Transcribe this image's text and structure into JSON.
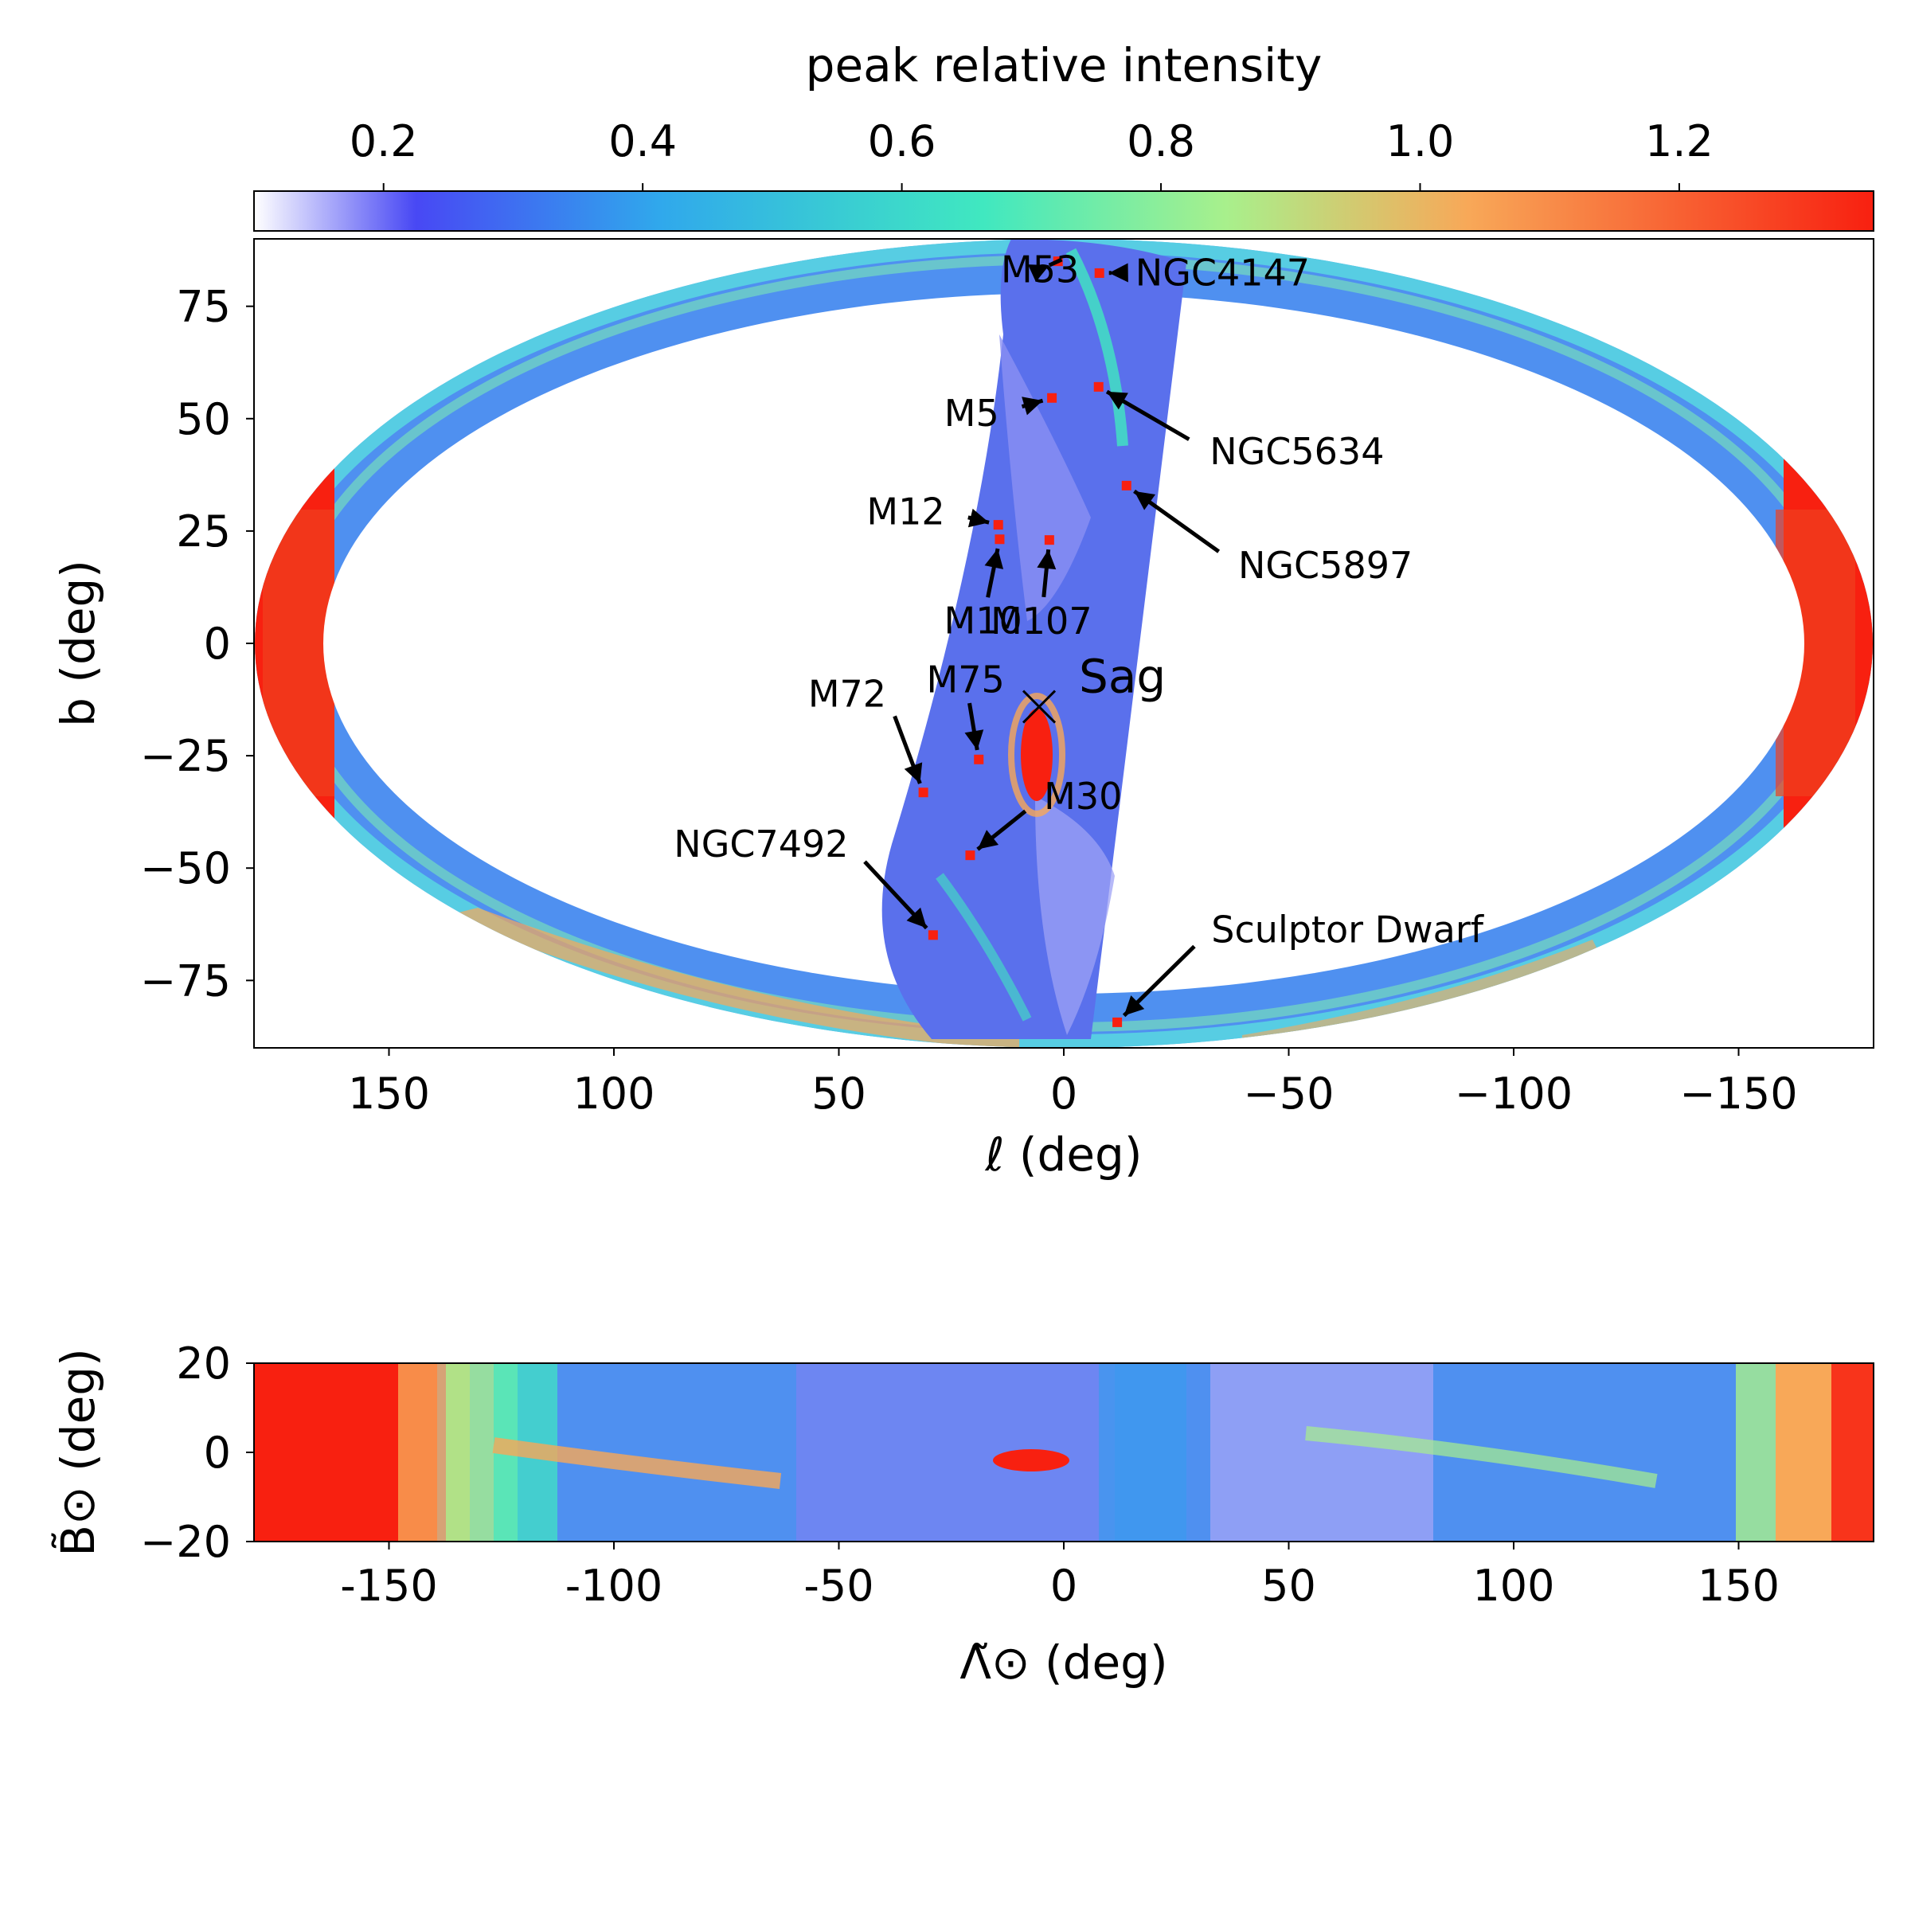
{
  "colorbar": {
    "label": "peak relative intensity",
    "range": [
      0.1,
      1.35
    ],
    "ticks": [
      0.2,
      0.4,
      0.6,
      0.8,
      1.0,
      1.2
    ],
    "tick_labels": [
      "0.2",
      "0.4",
      "0.6",
      "0.8",
      "1.0",
      "1.2"
    ],
    "stops": [
      "#ffffff",
      "#4848f4",
      "#30a8ec",
      "#40e8c0",
      "#a8f08c",
      "#f8a858",
      "#f82010"
    ]
  },
  "chart_data": [
    {
      "type": "heatmap",
      "projection": "aitoff",
      "xlabel": "ℓ (deg)",
      "ylabel": "b (deg)",
      "xlim": [
        180,
        -180
      ],
      "ylim": [
        -90,
        90
      ],
      "xticks": [
        150,
        100,
        50,
        0,
        -50,
        -100,
        -150
      ],
      "xtick_labels": [
        "150",
        "100",
        "50",
        "0",
        "−50",
        "−100",
        "−150"
      ],
      "yticks": [
        75,
        50,
        25,
        0,
        -25,
        -50,
        -75
      ],
      "ytick_labels": [
        "75",
        "50",
        "25",
        "0",
        "−25",
        "−50",
        "−75"
      ],
      "annotations": [
        {
          "label": "M53",
          "l": 10,
          "b": 85,
          "text_l": 30,
          "text_b": 83
        },
        {
          "label": "NGC4147",
          "l": -40,
          "b": 82,
          "text_l": -75,
          "text_b": 81
        },
        {
          "label": "M5",
          "l": 3.9,
          "b": 54.6,
          "text_l": 20,
          "text_b": 51
        },
        {
          "label": "NGC5634",
          "l": -12,
          "b": 57,
          "text_l": -40,
          "text_b": 42
        },
        {
          "label": "M12",
          "l": 15.7,
          "b": 26.3,
          "text_l": 29,
          "text_b": 29
        },
        {
          "label": "NGC5897",
          "l": -16,
          "b": 35,
          "text_l": -40,
          "text_b": 17
        },
        {
          "label": "M10",
          "l": 15.1,
          "b": 23.1,
          "text_l": 18,
          "text_b": 5
        },
        {
          "label": "M107",
          "l": 3.4,
          "b": 23,
          "text_l": 5,
          "text_b": 5
        },
        {
          "label": "Sag",
          "l": 5.6,
          "b": -14.1,
          "text_l": -8,
          "text_b": -10,
          "marker": "x"
        },
        {
          "label": "M75",
          "l": 20.3,
          "b": -25.7,
          "text_l": 22,
          "text_b": -8
        },
        {
          "label": "M72",
          "l": 35.2,
          "b": -32.7,
          "text_l": 40,
          "text_b": -11
        },
        {
          "label": "M30",
          "l": 27.2,
          "b": -46.8,
          "text_l": 5,
          "text_b": -34
        },
        {
          "label": "NGC7492",
          "l": 53.4,
          "b": -63.5,
          "text_l": 60,
          "text_b": -43
        },
        {
          "label": "Sculptor Dwarf",
          "l": 287.5,
          "b": -83.2,
          "text_l": 302,
          "text_b": -62
        }
      ]
    },
    {
      "type": "heatmap",
      "xlabel": "Λ̃⊙ (deg)",
      "ylabel": "B̃⊙ (deg)",
      "xlim": [
        -180,
        180
      ],
      "ylim": [
        -20,
        20
      ],
      "xticks": [
        -150,
        -100,
        -50,
        0,
        50,
        100,
        150
      ],
      "xtick_labels": [
        "-150",
        "-100",
        "-50",
        "0",
        "50",
        "100",
        "150"
      ],
      "yticks": [
        20,
        0,
        -20
      ],
      "ytick_labels": [
        "20",
        "0",
        "−20"
      ]
    }
  ]
}
